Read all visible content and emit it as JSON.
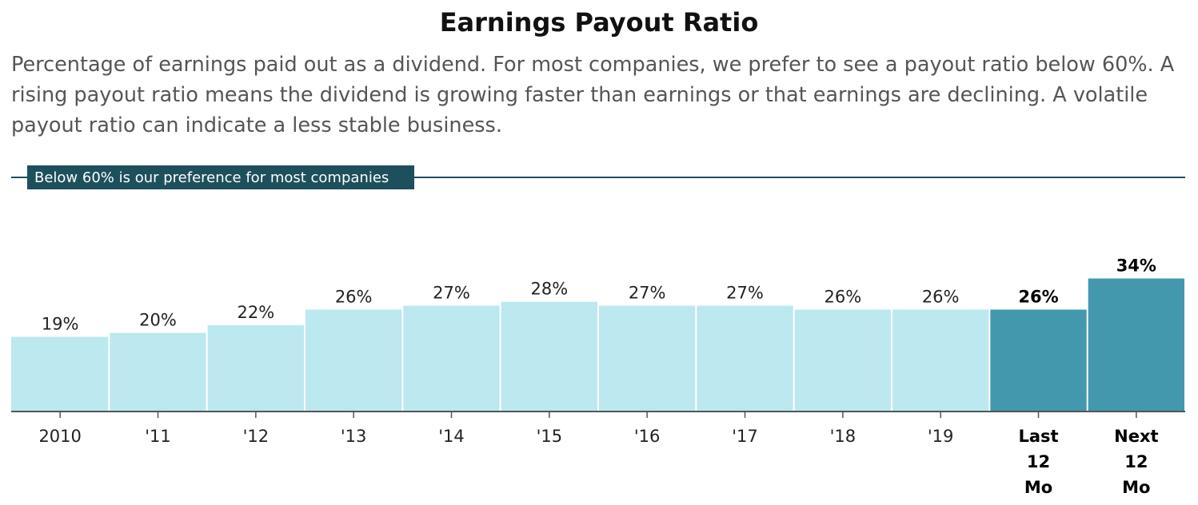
{
  "chart_data": {
    "type": "bar",
    "title": "Earnings Payout Ratio",
    "subtitle": "Percentage of earnings paid out as a dividend. For most companies, we prefer to see a payout ratio below 60%. A rising payout ratio means the dividend is growing faster than earnings or that earnings are declining. A volatile payout ratio can indicate a less stable business.",
    "categories": [
      "2010",
      "'11",
      "'12",
      "'13",
      "'14",
      "'15",
      "'16",
      "'17",
      "'18",
      "'19",
      "Last 12 Mo",
      "Next 12 Mo"
    ],
    "values": [
      19,
      20,
      22,
      26,
      27,
      28,
      27,
      27,
      26,
      26,
      26,
      34
    ],
    "data_labels": [
      "19%",
      "20%",
      "22%",
      "26%",
      "27%",
      "28%",
      "27%",
      "27%",
      "26%",
      "26%",
      "26%",
      "34%"
    ],
    "highlighted_categories": [
      "Last 12 Mo",
      "Next 12 Mo"
    ],
    "reference_line": {
      "value": 60,
      "label": "Below 60% is our preference for most companies"
    },
    "ylim": [
      0,
      60
    ],
    "grid": false,
    "colors": {
      "bar": "#bce8ef",
      "bar_highlight": "#4398ae",
      "reference": "#1e4f5c",
      "axis": "#555555"
    }
  }
}
